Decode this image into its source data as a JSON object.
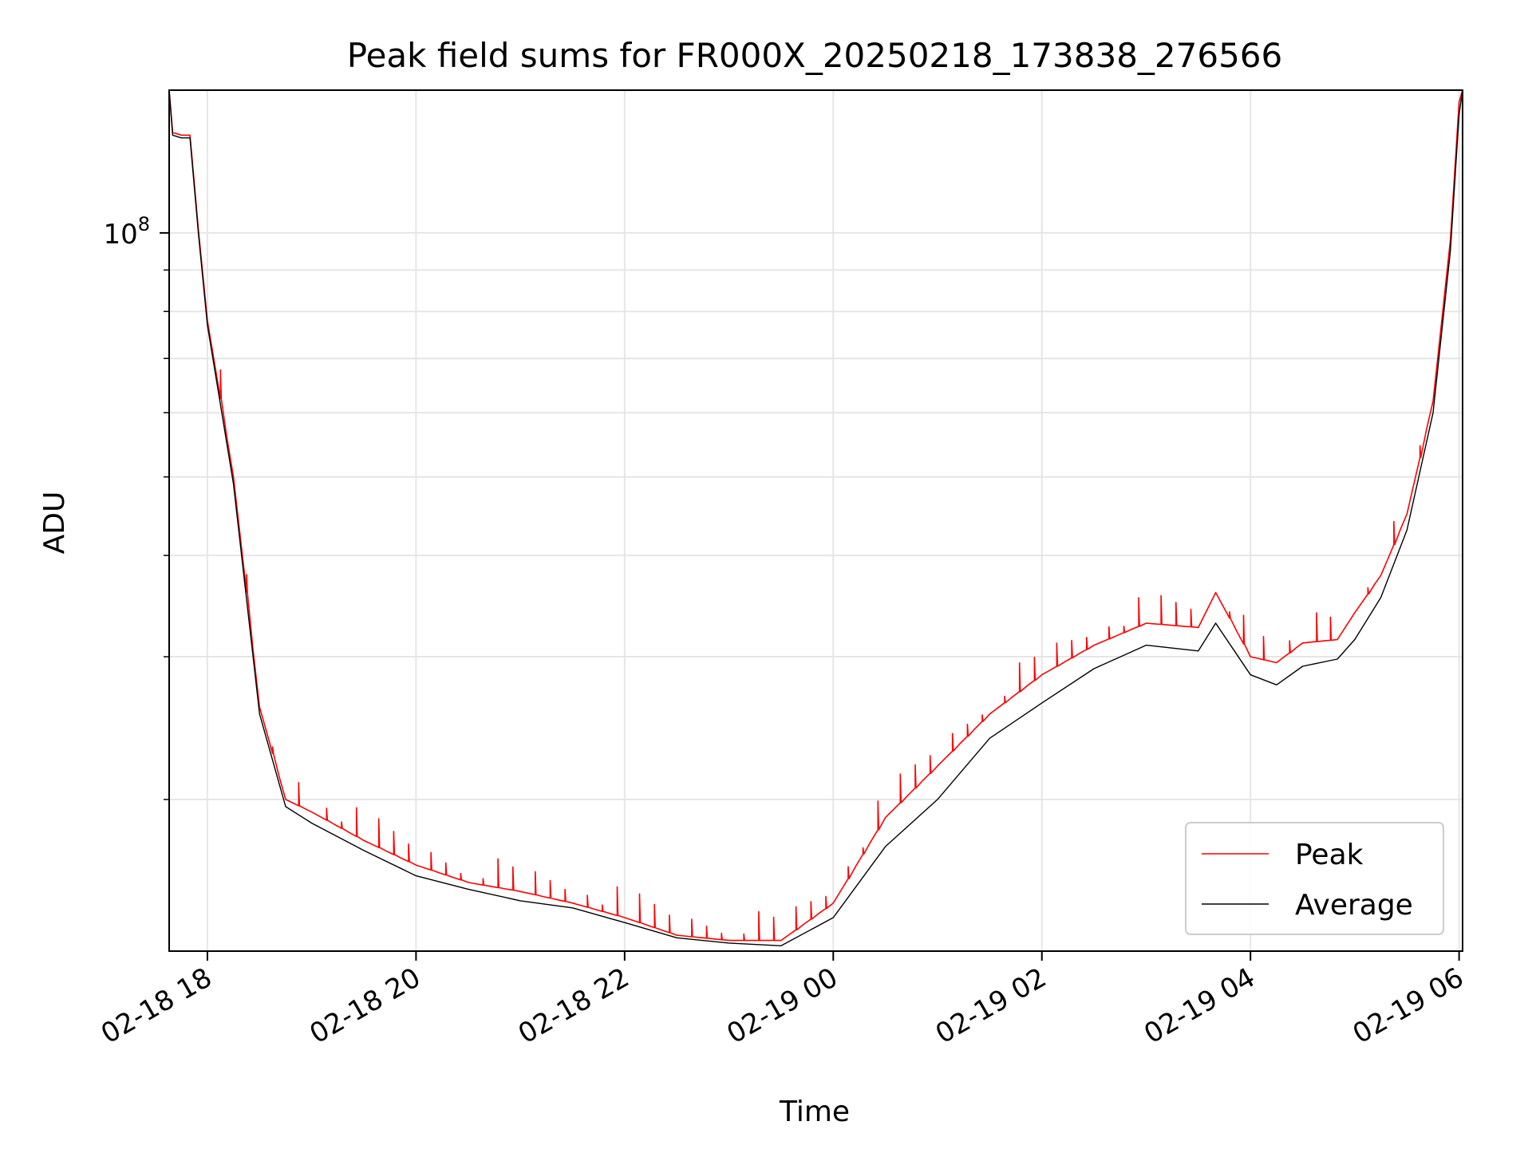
{
  "chart_data": {
    "type": "line",
    "title": "Peak field sums for FR000X_20250218_173838_276566",
    "xlabel": "Time",
    "ylabel": "ADU",
    "y_scale": "log",
    "y_tick_labels": [
      "10^8"
    ],
    "x_ticks": [
      "2025-02-18 18:00",
      "2025-02-18 20:00",
      "2025-02-18 22:00",
      "2025-02-19 00:00",
      "2025-02-19 02:00",
      "2025-02-19 04:00",
      "2025-02-19 06:00"
    ],
    "x_tick_labels": [
      "02-18 18",
      "02-18 20",
      "02-18 22",
      "02-19 00",
      "02-19 02",
      "02-19 04",
      "02-19 06"
    ],
    "xlim": [
      "2025-02-18 17:38",
      "2025-02-19 06:02"
    ],
    "ylim": [
      13000000,
      150000000
    ],
    "grid": true,
    "legend": "lower-right",
    "series": [
      {
        "name": "Peak",
        "color": "#ff0000",
        "style": "thin line with frequent upward spikes",
        "x": [
          "2025-02-18 17:38",
          "2025-02-18 17:40",
          "2025-02-18 17:45",
          "2025-02-18 17:50",
          "2025-02-18 17:55",
          "2025-02-18 18:00",
          "2025-02-18 18:15",
          "2025-02-18 18:30",
          "2025-02-18 18:45",
          "2025-02-18 19:00",
          "2025-02-18 19:30",
          "2025-02-18 20:00",
          "2025-02-18 20:30",
          "2025-02-18 21:00",
          "2025-02-18 21:30",
          "2025-02-18 22:00",
          "2025-02-18 22:30",
          "2025-02-18 23:00",
          "2025-02-18 23:30",
          "2025-02-19 00:00",
          "2025-02-19 00:30",
          "2025-02-19 01:00",
          "2025-02-19 01:30",
          "2025-02-19 02:00",
          "2025-02-19 02:30",
          "2025-02-19 03:00",
          "2025-02-19 03:30",
          "2025-02-19 03:40",
          "2025-02-19 04:00",
          "2025-02-19 04:15",
          "2025-02-19 04:30",
          "2025-02-19 04:50",
          "2025-02-19 05:00",
          "2025-02-19 05:15",
          "2025-02-19 05:30",
          "2025-02-19 05:45",
          "2025-02-19 05:55",
          "2025-02-19 06:00",
          "2025-02-19 06:02"
        ],
        "values": [
          150000000,
          133000000,
          132000000,
          132000000,
          100000000,
          78000000,
          50000000,
          26000000,
          20000000,
          19300000,
          17800000,
          16600000,
          15800000,
          15400000,
          14900000,
          14300000,
          13600000,
          13400000,
          13400000,
          14900000,
          19000000,
          22000000,
          25500000,
          28500000,
          31000000,
          33000000,
          32600000,
          36000000,
          30000000,
          29500000,
          31200000,
          31500000,
          34000000,
          37800000,
          45000000,
          62000000,
          98000000,
          145000000,
          150000000
        ]
      },
      {
        "name": "Average",
        "color": "#000000",
        "style": "thin line",
        "x": [
          "2025-02-18 17:38",
          "2025-02-18 17:40",
          "2025-02-18 17:45",
          "2025-02-18 17:50",
          "2025-02-18 17:55",
          "2025-02-18 18:00",
          "2025-02-18 18:15",
          "2025-02-18 18:30",
          "2025-02-18 18:45",
          "2025-02-18 19:00",
          "2025-02-18 19:30",
          "2025-02-18 20:00",
          "2025-02-18 20:30",
          "2025-02-18 21:00",
          "2025-02-18 21:30",
          "2025-02-18 22:00",
          "2025-02-18 22:30",
          "2025-02-18 23:00",
          "2025-02-18 23:30",
          "2025-02-19 00:00",
          "2025-02-19 00:30",
          "2025-02-19 01:00",
          "2025-02-19 01:30",
          "2025-02-19 02:00",
          "2025-02-19 02:30",
          "2025-02-19 03:00",
          "2025-02-19 03:30",
          "2025-02-19 03:40",
          "2025-02-19 04:00",
          "2025-02-19 04:15",
          "2025-02-19 04:30",
          "2025-02-19 04:50",
          "2025-02-19 05:00",
          "2025-02-19 05:15",
          "2025-02-19 05:30",
          "2025-02-19 05:45",
          "2025-02-19 05:55",
          "2025-02-19 06:00",
          "2025-02-19 06:02"
        ],
        "values": [
          150000000,
          132000000,
          131000000,
          131000000,
          99000000,
          77000000,
          49000000,
          25500000,
          19600000,
          18700000,
          17300000,
          16100000,
          15500000,
          15000000,
          14700000,
          14100000,
          13500000,
          13300000,
          13200000,
          14300000,
          17500000,
          20000000,
          23800000,
          26300000,
          29000000,
          31000000,
          30500000,
          33000000,
          28500000,
          27700000,
          29200000,
          29800000,
          31500000,
          35500000,
          43000000,
          60000000,
          95000000,
          140000000,
          150000000
        ]
      }
    ]
  }
}
